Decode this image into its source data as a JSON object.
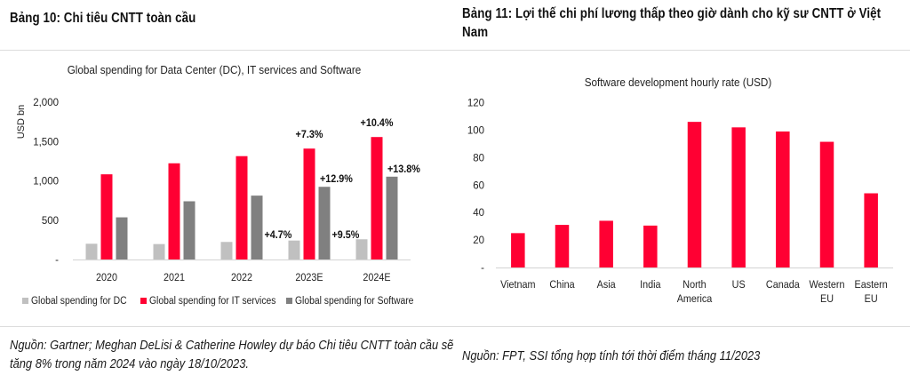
{
  "left_panel": {
    "heading": "Bảng 10: Chi tiêu CNTT toàn cầu",
    "source": "Nguồn: Gartner; Meghan DeLisi & Catherine Howley dự báo Chi tiêu CNTT toàn cầu sẽ tăng 8% trong năm 2024 vào ngày 18/10/2023."
  },
  "right_panel": {
    "heading": "Bảng 11: Lợi thế chi phí lương thấp theo giờ dành cho kỹ sư CNTT ở Việt Nam",
    "source": "Nguồn: FPT, SSI tổng hợp tính tới thời điểm tháng 11/2023"
  },
  "colors": {
    "dc": "#c0c0c0",
    "it_services": "#ff0033",
    "software": "#808080",
    "axis": "#d9d9d9",
    "text": "#222222"
  },
  "chart_data": [
    {
      "type": "bar",
      "title": "Global spending for Data Center (DC), IT services and Software",
      "xlabel": "",
      "ylabel": "USD bn",
      "ylim": [
        0,
        2000
      ],
      "yticks": [
        0,
        500,
        1000,
        1500,
        2000
      ],
      "ytick_labels": [
        "-",
        "500",
        "1,000",
        "1,500",
        "2,000"
      ],
      "grid": false,
      "legend_position": "bottom",
      "categories": [
        "2020",
        "2021",
        "2022",
        "2023E",
        "2024E"
      ],
      "series": [
        {
          "name": "Global spending for DC",
          "color_key": "dc",
          "values": [
            200,
            196,
            223,
            241,
            257
          ]
        },
        {
          "name": "Global spending for IT services",
          "color_key": "it_services",
          "values": [
            1083,
            1223,
            1314,
            1410,
            1557
          ]
        },
        {
          "name": "Global spending for Software",
          "color_key": "software",
          "values": [
            536,
            740,
            812,
            924,
            1053
          ]
        }
      ],
      "annotations": [
        {
          "text": "+4.7%",
          "category": "2022",
          "near_series": "Global spending for Software",
          "position": "right"
        },
        {
          "text": "+7.3%",
          "category": "2023E",
          "near_series": "Global spending for IT services",
          "position": "top"
        },
        {
          "text": "+12.9%",
          "category": "2023E",
          "near_series": "Global spending for Software",
          "position": "top-right"
        },
        {
          "text": "+9.5%",
          "category": "2023E",
          "near_series": "Global spending for Software",
          "position": "right"
        },
        {
          "text": "+10.4%",
          "category": "2024E",
          "near_series": "Global spending for IT services",
          "position": "top"
        },
        {
          "text": "+13.8%",
          "category": "2024E",
          "near_series": "Global spending for Software",
          "position": "top-right"
        }
      ]
    },
    {
      "type": "bar",
      "title": "Software development hourly rate (USD)",
      "xlabel": "",
      "ylabel": "",
      "ylim": [
        0,
        120
      ],
      "yticks": [
        0,
        20,
        40,
        60,
        80,
        100,
        120
      ],
      "ytick_labels": [
        "-",
        "20",
        "40",
        "60",
        "80",
        "100",
        "120"
      ],
      "grid": false,
      "categories": [
        [
          "Vietnam"
        ],
        [
          "China"
        ],
        [
          "Asia"
        ],
        [
          "India"
        ],
        [
          "North",
          "America"
        ],
        [
          "US"
        ],
        [
          "Canada"
        ],
        [
          "Western",
          "EU"
        ],
        [
          "Eastern",
          "EU"
        ]
      ],
      "series": [
        {
          "name": "Hourly rate",
          "color_key": "it_services",
          "values": [
            25,
            31,
            34,
            30.5,
            106,
            102,
            99,
            91.5,
            54
          ]
        }
      ]
    }
  ]
}
